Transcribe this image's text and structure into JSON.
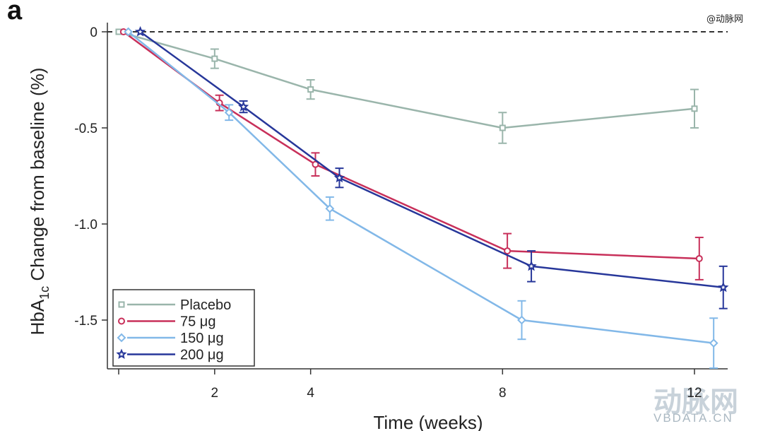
{
  "panel_label": "a",
  "source_tag": "@动脉网",
  "watermark": {
    "brand_cn": "动脉网",
    "brand_en": "VBDATA.CN"
  },
  "chart_data": {
    "type": "line",
    "xlabel": "Time (weeks)",
    "ylabel": {
      "prefix": "HbA",
      "subscript": "1c",
      "suffix": " Change from baseline (%)"
    },
    "xticks": [
      2,
      4,
      8,
      12
    ],
    "yticks": [
      0,
      -0.5,
      -1.0,
      -1.5
    ],
    "ytick_labels": [
      "0",
      "-0.5",
      "-1.0",
      "-1.5"
    ],
    "xlim": [
      -0.1,
      12.8
    ],
    "ylim": [
      -1.75,
      0.02
    ],
    "reference_line": {
      "y": 0,
      "style": "dashed"
    },
    "legend_position": "bottom-left",
    "series": [
      {
        "name": "Placebo",
        "color": "#9ab5ab",
        "marker": "square",
        "x": [
          0,
          2,
          4,
          8,
          12
        ],
        "y": [
          0,
          -0.14,
          -0.3,
          -0.5,
          -0.4
        ],
        "err": [
          0,
          0.05,
          0.05,
          0.08,
          0.1
        ]
      },
      {
        "name": "75 μg",
        "color": "#c8305a",
        "marker": "circle",
        "x": [
          0.1,
          2.1,
          4.1,
          8.1,
          12.1
        ],
        "y": [
          0,
          -0.37,
          -0.69,
          -1.14,
          -1.18
        ],
        "err": [
          0,
          0.04,
          0.06,
          0.09,
          0.11
        ]
      },
      {
        "name": "150 μg",
        "color": "#82b8e8",
        "marker": "diamond",
        "x": [
          0.2,
          2.3,
          4.4,
          8.4,
          12.4
        ],
        "y": [
          0,
          -0.42,
          -0.92,
          -1.5,
          -1.62
        ],
        "err": [
          0,
          0.04,
          0.06,
          0.1,
          0.13
        ]
      },
      {
        "name": "200 μg",
        "color": "#27379a",
        "marker": "star",
        "x": [
          0.45,
          2.6,
          4.6,
          8.6,
          12.6
        ],
        "y": [
          0,
          -0.39,
          -0.76,
          -1.22,
          -1.33
        ],
        "err": [
          0,
          0.03,
          0.05,
          0.08,
          0.11
        ]
      }
    ]
  }
}
